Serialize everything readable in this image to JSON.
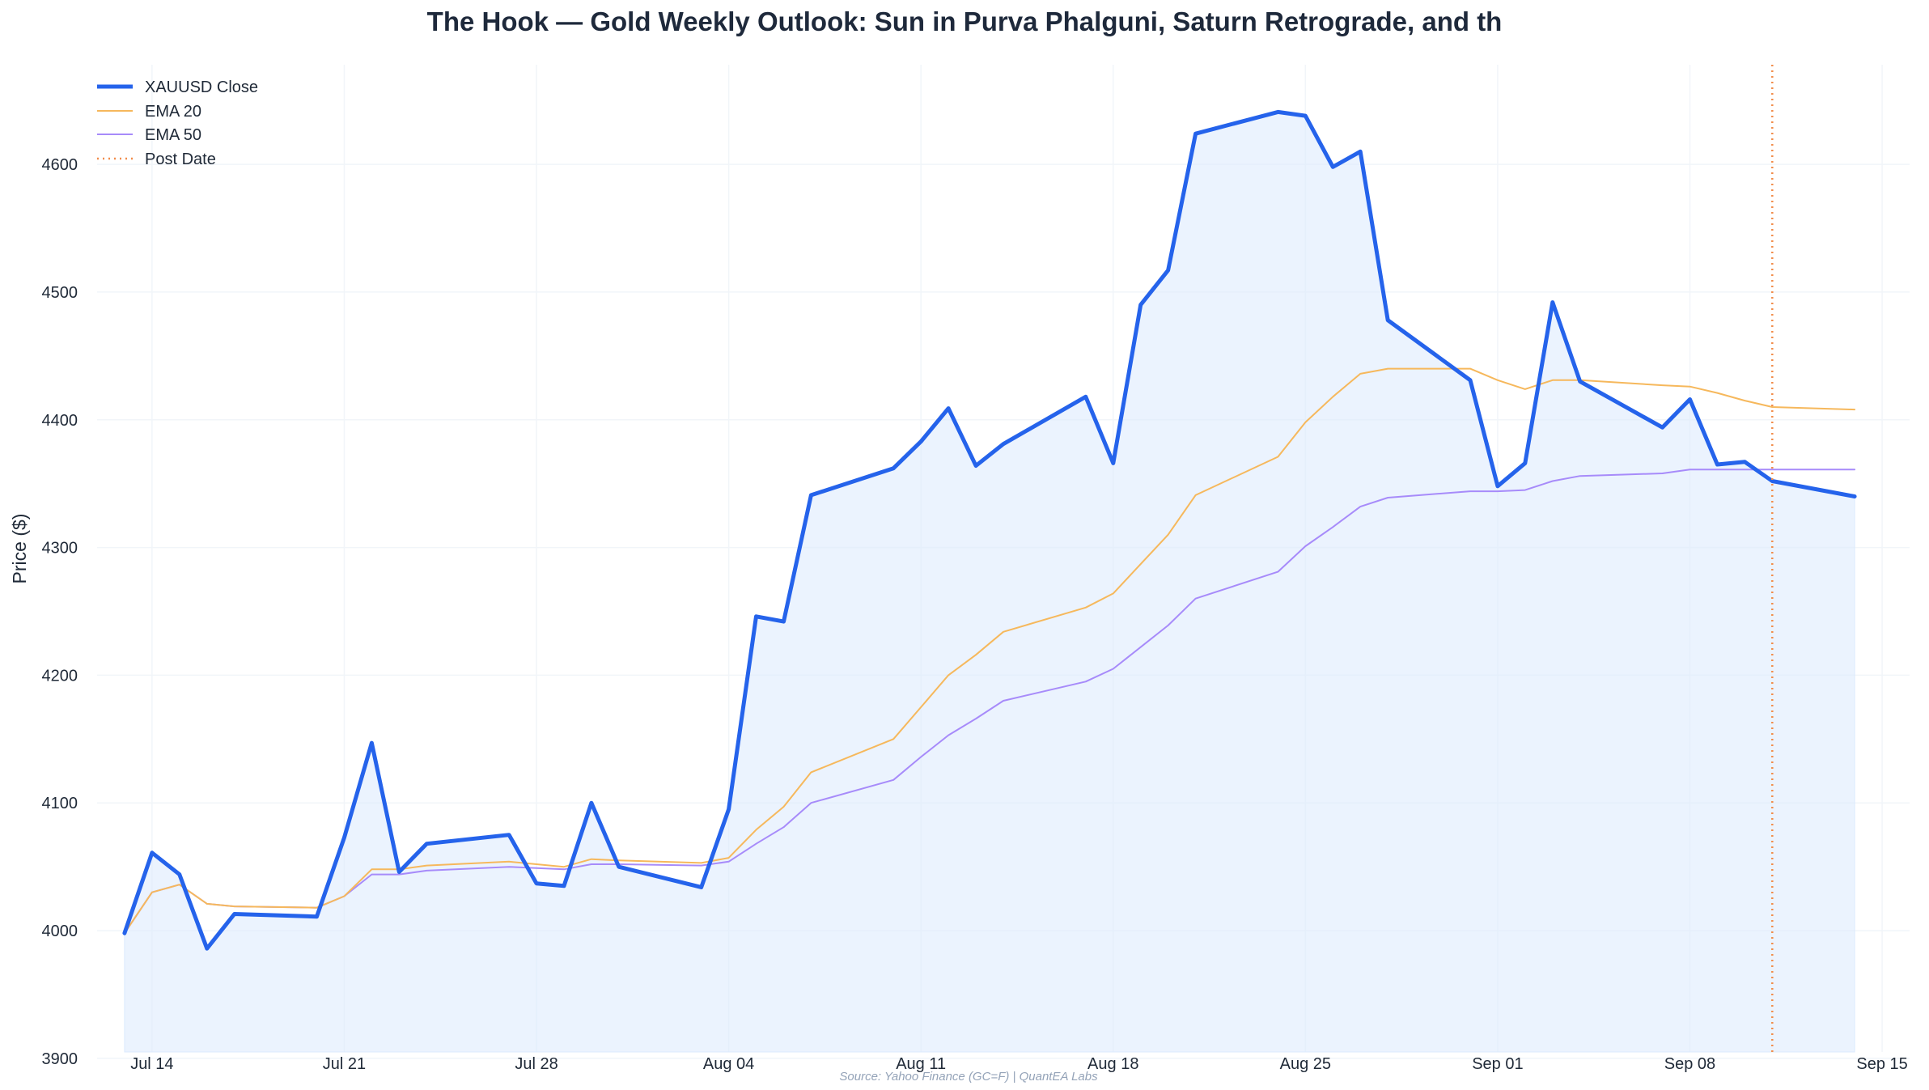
{
  "chart_data": {
    "type": "line",
    "title": "The Hook — Gold Weekly Outlook: Sun in Purva Phalguni, Saturn Retrograde, and th",
    "xlabel": "",
    "ylabel": "Price ($)",
    "source": "Source: Yahoo Finance (GC=F) | QuantEA Labs",
    "ylim": [
      3905,
      4678
    ],
    "xlim": [
      "2025-07-12",
      "2025-09-16"
    ],
    "y_ticks": [
      3900,
      4000,
      4100,
      4200,
      4300,
      4400,
      4500,
      4600
    ],
    "x_ticks": [
      {
        "date": "2025-07-14",
        "label": "Jul 14"
      },
      {
        "date": "2025-07-21",
        "label": "Jul 21"
      },
      {
        "date": "2025-07-28",
        "label": "Jul 28"
      },
      {
        "date": "2025-08-04",
        "label": "Aug 04"
      },
      {
        "date": "2025-08-11",
        "label": "Aug 11"
      },
      {
        "date": "2025-08-18",
        "label": "Aug 18"
      },
      {
        "date": "2025-08-25",
        "label": "Aug 25"
      },
      {
        "date": "2025-09-01",
        "label": "Sep 01"
      },
      {
        "date": "2025-09-08",
        "label": "Sep 08"
      },
      {
        "date": "2025-09-15",
        "label": "Sep 15"
      }
    ],
    "grid": true,
    "legend_position": "top-left",
    "colors": {
      "close": "#2563eb",
      "fill": "#dbeafe",
      "ema20": "#f6b85c",
      "ema50": "#a78bfa",
      "post_date": "#f28c4a",
      "grid": "#f1f5f9"
    },
    "x": [
      "2025-07-13",
      "2025-07-14",
      "2025-07-15",
      "2025-07-16",
      "2025-07-17",
      "2025-07-20",
      "2025-07-21",
      "2025-07-22",
      "2025-07-23",
      "2025-07-24",
      "2025-07-27",
      "2025-07-28",
      "2025-07-29",
      "2025-07-30",
      "2025-07-31",
      "2025-08-03",
      "2025-08-04",
      "2025-08-05",
      "2025-08-06",
      "2025-08-07",
      "2025-08-10",
      "2025-08-11",
      "2025-08-12",
      "2025-08-13",
      "2025-08-14",
      "2025-08-17",
      "2025-08-18",
      "2025-08-19",
      "2025-08-20",
      "2025-08-21",
      "2025-08-24",
      "2025-08-25",
      "2025-08-26",
      "2025-08-27",
      "2025-08-28",
      "2025-08-31",
      "2025-09-01",
      "2025-09-02",
      "2025-09-03",
      "2025-09-04",
      "2025-09-07",
      "2025-09-08",
      "2025-09-09",
      "2025-09-10",
      "2025-09-11",
      "2025-09-14"
    ],
    "series": [
      {
        "name": "XAUUSD Close",
        "values": [
          3998,
          4061,
          4044,
          3986,
          4013,
          4011,
          4073,
          4147,
          4046,
          4068,
          4075,
          4037,
          4035,
          4100,
          4050,
          4034,
          4095,
          4246,
          4242,
          4341,
          4362,
          4383,
          4409,
          4364,
          4381,
          4418,
          4366,
          4490,
          4517,
          4624,
          4641,
          4638,
          4598,
          4610,
          4478,
          4431,
          4348,
          4366,
          4492,
          4430,
          4394,
          4416,
          4365,
          4367,
          4352,
          4340
        ]
      },
      {
        "name": "EMA 20",
        "values": [
          3998,
          4030,
          4036,
          4021,
          4019,
          4018,
          4027,
          4048,
          4048,
          4051,
          4054,
          4052,
          4050,
          4056,
          4055,
          4053,
          4057,
          4079,
          4097,
          4124,
          4150,
          4175,
          4200,
          4216,
          4234,
          4253,
          4264,
          4287,
          4310,
          4341,
          4371,
          4398,
          4418,
          4436,
          4440,
          4440,
          4431,
          4424,
          4431,
          4431,
          4427,
          4426,
          4421,
          4415,
          4410,
          4408
        ]
      },
      {
        "name": "EMA 50",
        "values": [
          3998,
          4030,
          4036,
          4021,
          4019,
          4018,
          4027,
          4044,
          4044,
          4047,
          4050,
          4049,
          4048,
          4052,
          4052,
          4051,
          4054,
          4068,
          4081,
          4100,
          4118,
          4136,
          4153,
          4166,
          4180,
          4195,
          4205,
          4222,
          4239,
          4260,
          4281,
          4301,
          4316,
          4332,
          4339,
          4344,
          4344,
          4345,
          4352,
          4356,
          4358,
          4361,
          4361,
          4361,
          4361,
          4361
        ]
      }
    ],
    "post_date": "2025-09-11",
    "legend": {
      "close": "XAUUSD Close",
      "ema20": "EMA 20",
      "ema50": "EMA 50",
      "post_date": "Post Date"
    }
  }
}
